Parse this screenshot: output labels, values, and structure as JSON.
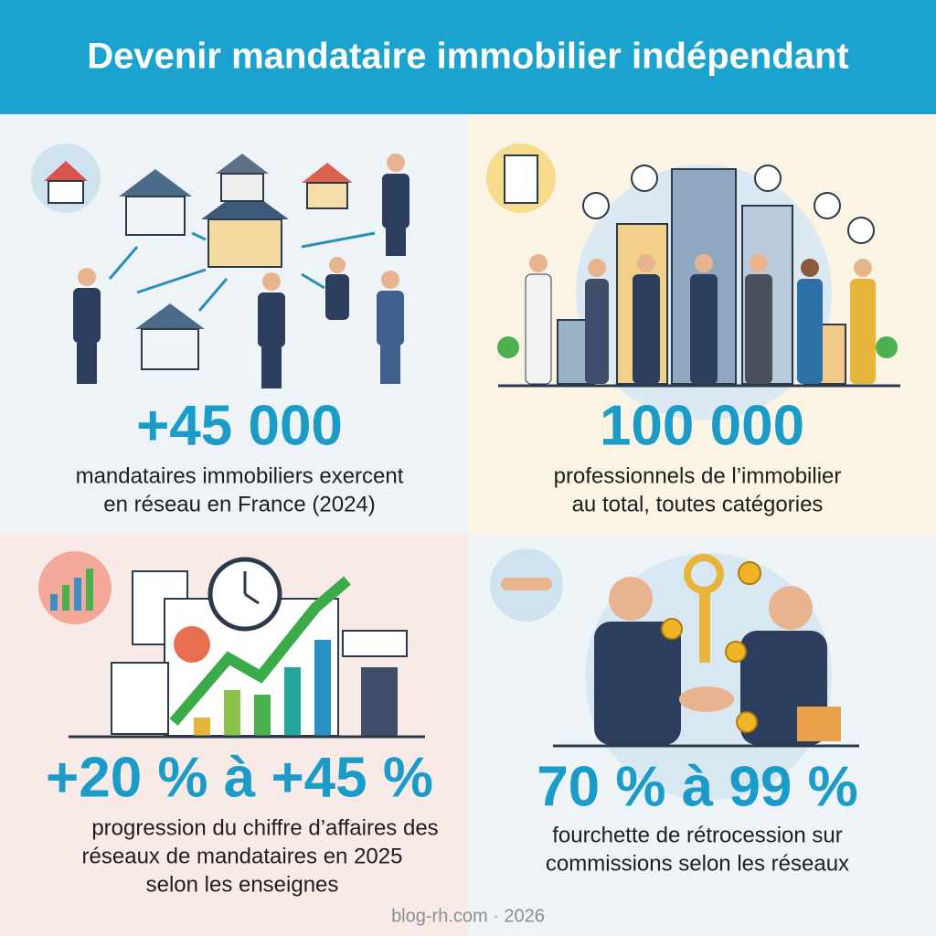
{
  "header": {
    "title": "Devenir mandataire immobilier indépendant"
  },
  "panels": [
    {
      "stat": "+45 000",
      "lines": [
        "mandataires immobiliers exercent",
        "en réseau en France (2024)"
      ]
    },
    {
      "stat": "100 000",
      "lines": [
        "professionnels de l’immobilier",
        "au total, toutes catégories"
      ]
    },
    {
      "stat": "+20 % à +45 %",
      "lines": [
        "progression du chiffre d’affaires des",
        "réseaux de mandataires en 2025",
        "selon les enseignes"
      ]
    },
    {
      "stat": "70 % à 99 %",
      "lines": [
        "fourchette de rétrocession sur",
        "commissions selon les réseaux"
      ]
    }
  ],
  "footer": "blog-rh.com · 2026"
}
